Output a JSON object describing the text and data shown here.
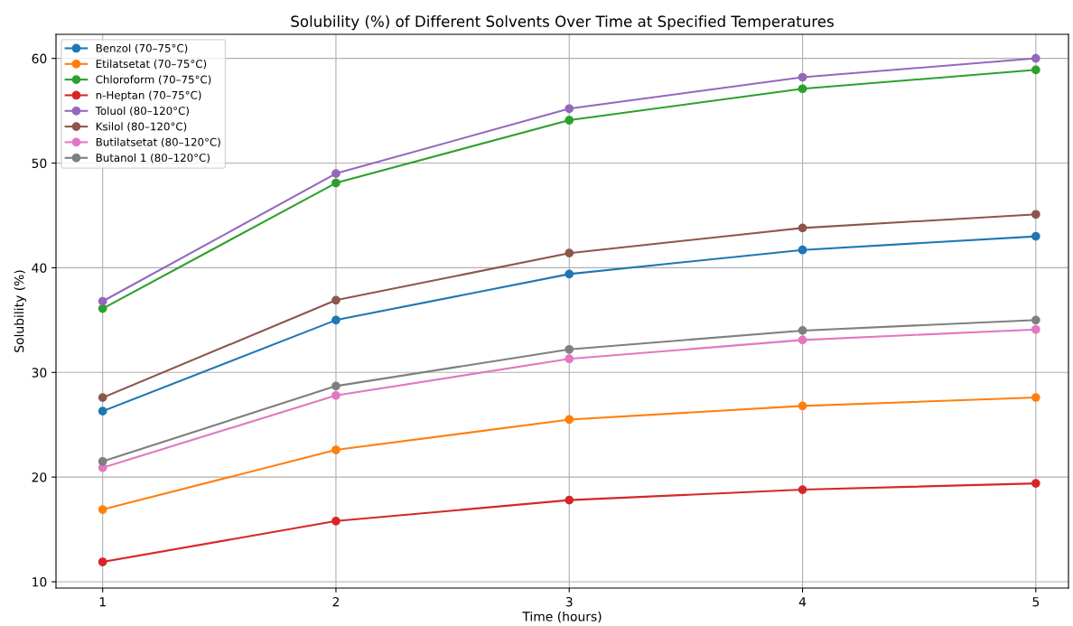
{
  "chart_data": {
    "type": "line",
    "title": "Solubility (%) of Different Solvents Over Time at Specified Temperatures",
    "xlabel": "Time (hours)",
    "ylabel": "Solubility (%)",
    "x": [
      1,
      2,
      3,
      4,
      5
    ],
    "series": [
      {
        "name": "Benzol (70–75°C)",
        "color": "#1f77b4",
        "values": [
          26.3,
          35.0,
          39.4,
          41.7,
          43.0
        ]
      },
      {
        "name": "Etilatsetat (70–75°C)",
        "color": "#ff7f0e",
        "values": [
          16.9,
          22.6,
          25.5,
          26.8,
          27.6
        ]
      },
      {
        "name": "Chloroform (70–75°C)",
        "color": "#2ca02c",
        "values": [
          36.1,
          48.1,
          54.1,
          57.1,
          58.9
        ]
      },
      {
        "name": "n-Heptan (70–75°C)",
        "color": "#d62728",
        "values": [
          11.9,
          15.8,
          17.8,
          18.8,
          19.4
        ]
      },
      {
        "name": "Toluol (80–120°C)",
        "color": "#9467bd",
        "values": [
          36.8,
          49.0,
          55.2,
          58.2,
          60.0
        ]
      },
      {
        "name": "Ksilol (80–120°C)",
        "color": "#8c564b",
        "values": [
          27.6,
          36.9,
          41.4,
          43.8,
          45.1
        ]
      },
      {
        "name": "Butilatsetat (80–120°C)",
        "color": "#e377c2",
        "values": [
          20.9,
          27.8,
          31.3,
          33.1,
          34.1
        ]
      },
      {
        "name": "Butanol 1 (80–120°C)",
        "color": "#7f7f7f",
        "values": [
          21.5,
          28.7,
          32.2,
          34.0,
          35.0
        ]
      }
    ],
    "xlim": [
      0.8,
      5.14
    ],
    "xticks": [
      1,
      2,
      3,
      4,
      5
    ],
    "ylim": [
      9.4,
      62.3
    ],
    "yticks": [
      10,
      20,
      30,
      40,
      50,
      60
    ],
    "grid": true,
    "legend": "top left",
    "marker": "circle",
    "line_style": "solid"
  }
}
